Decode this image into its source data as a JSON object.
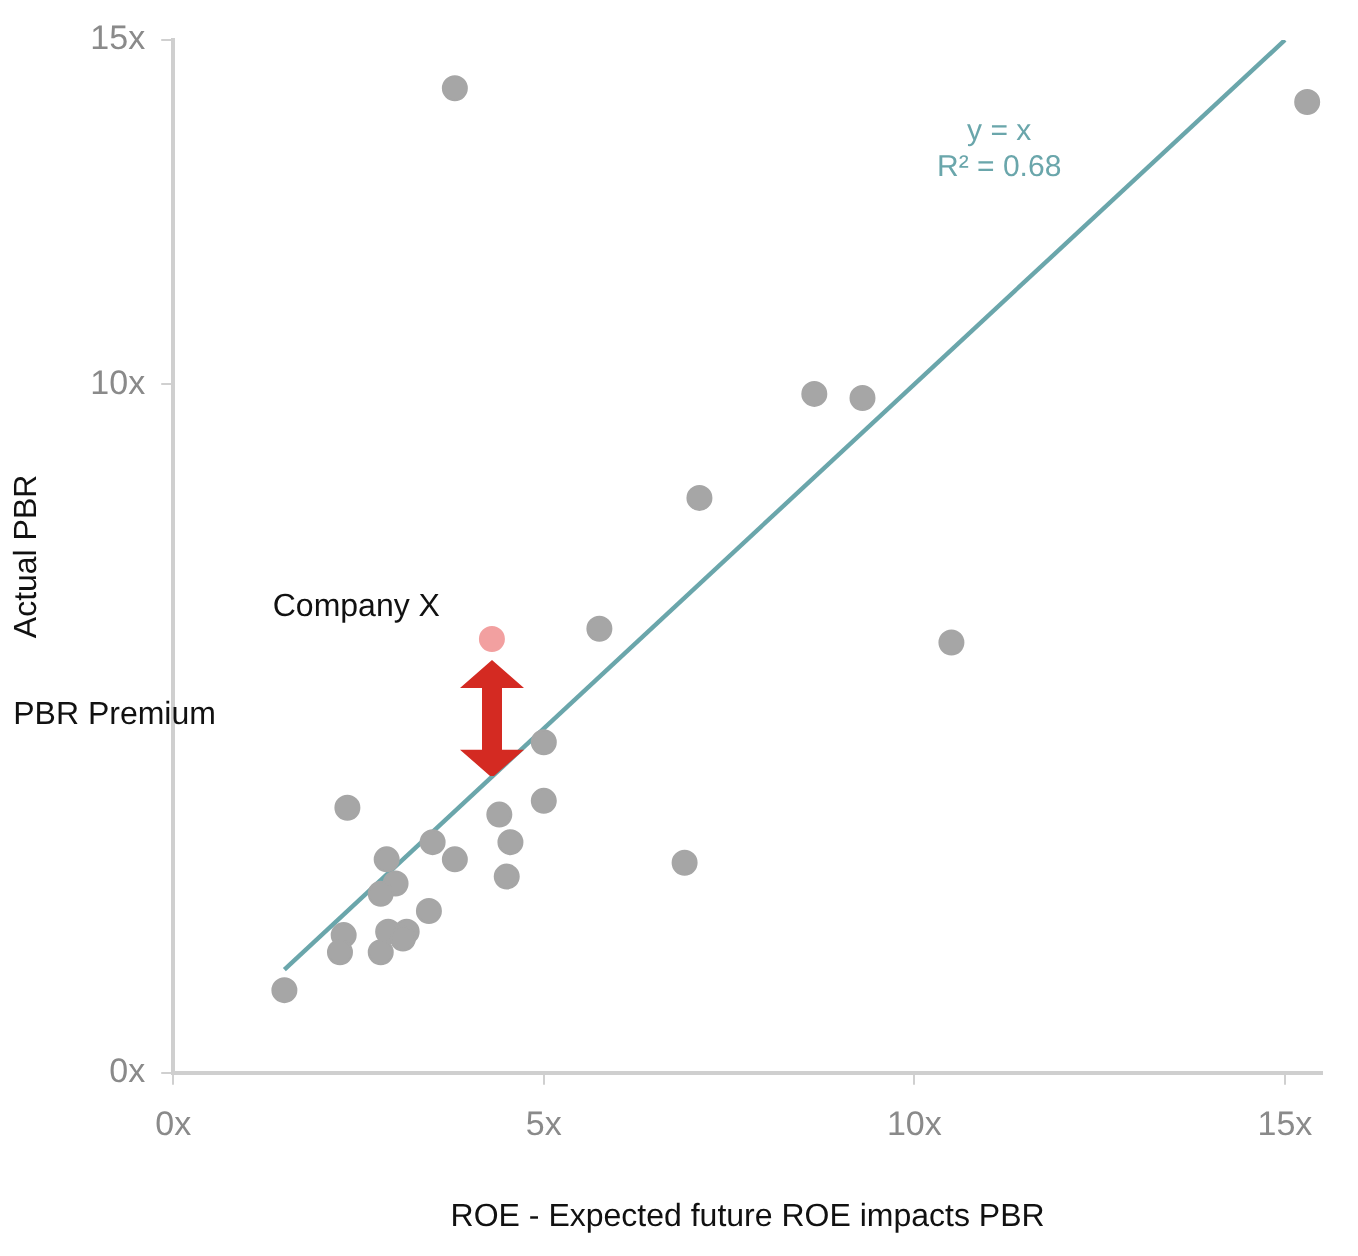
{
  "chart_data": {
    "type": "scatter",
    "xlabel": "ROE - Expected future ROE impacts PBR",
    "ylabel": "Actual PBR",
    "xlim": [
      0,
      15.5
    ],
    "xticks": [
      {
        "value": 0,
        "label": "0x"
      },
      {
        "value": 5,
        "label": "5x"
      },
      {
        "value": 10,
        "label": "10x"
      },
      {
        "value": 15,
        "label": "15x"
      }
    ],
    "ylim": [
      0,
      15
    ],
    "yticks": [
      {
        "value": 0,
        "label": "0x"
      },
      {
        "value": 10,
        "label": "10x"
      },
      {
        "value": 15,
        "label": "15x"
      }
    ],
    "grid": false,
    "legend": false,
    "marker": "circle",
    "series": [
      {
        "color": "#a6a6a6",
        "x": [
          3.8,
          15.3,
          8.65,
          9.3,
          7.1,
          5.75,
          10.5,
          5.0,
          5.0,
          2.35,
          4.4,
          4.55,
          3.5,
          2.88,
          3.8,
          6.9,
          4.5,
          3.0,
          2.8,
          3.45,
          2.3,
          2.9,
          3.15,
          3.1,
          2.25,
          2.8,
          1.5
        ],
        "values": [
          14.3,
          14.1,
          9.86,
          9.8,
          8.35,
          6.45,
          6.25,
          4.8,
          3.95,
          3.85,
          3.75,
          3.35,
          3.35,
          3.1,
          3.1,
          3.05,
          2.85,
          2.75,
          2.6,
          2.35,
          2.0,
          2.05,
          2.05,
          1.95,
          1.75,
          1.75,
          1.2
        ]
      },
      {
        "color": "#f2a0a0",
        "x": [
          4.3
        ],
        "values": [
          6.3
        ]
      },
      {
        "type": "line",
        "color": "#6aa6ab",
        "x": [
          1.5,
          15
        ],
        "values": [
          1.5,
          15
        ],
        "marker": "none"
      }
    ],
    "annotations": [
      {
        "text": "Company X",
        "x": 4.3,
        "y": 6.3
      },
      "PBR Premium",
      "y = x",
      "R² = 0.68"
    ]
  }
}
